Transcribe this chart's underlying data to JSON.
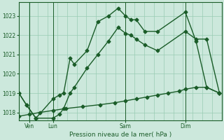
{
  "background_color": "#cce8dc",
  "plot_bg_color": "#cce8dc",
  "grid_color": "#99ccb3",
  "line_color": "#1a5c28",
  "title": "Pression niveau de la mer( hPa )",
  "ylabel_ticks": [
    1018,
    1019,
    1020,
    1021,
    1022,
    1023
  ],
  "xlim": [
    0,
    9.5
  ],
  "ylim": [
    1017.6,
    1023.7
  ],
  "xtick_positions": [
    0.5,
    1.6,
    5.0,
    7.8
  ],
  "xtick_labels": [
    "Ven",
    "Lun",
    "Sam",
    "Dim"
  ],
  "vlines": [
    0.5,
    1.6,
    5.0,
    7.8
  ],
  "line1_x": [
    0.0,
    0.35,
    0.8,
    1.6,
    1.9,
    2.1,
    2.4,
    2.6,
    3.2,
    3.7,
    4.2,
    4.65,
    5.0,
    5.25,
    5.5,
    5.9,
    6.5,
    7.8,
    8.3,
    8.8,
    9.4
  ],
  "line1_y": [
    1019.0,
    1018.4,
    1017.7,
    1018.7,
    1018.9,
    1019.0,
    1020.8,
    1020.5,
    1021.2,
    1022.7,
    1023.0,
    1023.4,
    1023.0,
    1022.8,
    1022.8,
    1022.2,
    1022.2,
    1023.2,
    1021.7,
    1019.3,
    1019.0
  ],
  "line2_x": [
    0.0,
    0.35,
    0.8,
    1.6,
    1.9,
    2.1,
    2.4,
    2.6,
    3.2,
    3.7,
    4.2,
    4.65,
    5.0,
    5.25,
    5.5,
    5.9,
    6.5,
    7.8,
    8.3,
    8.8,
    9.4
  ],
  "line2_y": [
    1019.0,
    1018.4,
    1017.7,
    1017.7,
    1017.9,
    1018.2,
    1019.0,
    1019.3,
    1020.3,
    1021.0,
    1021.7,
    1022.4,
    1022.1,
    1022.0,
    1021.8,
    1021.5,
    1021.2,
    1022.2,
    1021.8,
    1021.8,
    1019.0
  ],
  "line3_x": [
    0.0,
    0.5,
    1.0,
    1.6,
    2.2,
    3.0,
    3.8,
    4.5,
    5.0,
    5.5,
    6.0,
    6.5,
    7.0,
    7.5,
    7.8,
    8.3,
    8.8,
    9.4
  ],
  "line3_y": [
    1017.8,
    1017.9,
    1018.0,
    1018.1,
    1018.2,
    1018.3,
    1018.4,
    1018.5,
    1018.6,
    1018.7,
    1018.8,
    1018.9,
    1019.0,
    1019.1,
    1019.2,
    1019.3,
    1019.3,
    1019.0
  ],
  "marker": "D",
  "marker_size": 2.5,
  "linewidth": 1.0
}
